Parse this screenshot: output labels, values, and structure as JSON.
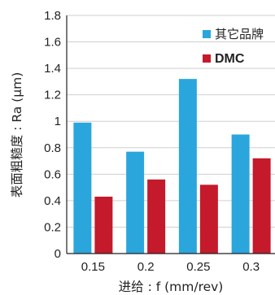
{
  "chart_data": {
    "type": "bar",
    "xlabel": "进给 : f (mm/rev)",
    "ylabel": "表面粗糙度 : Ra (μm)",
    "categories": [
      "0.15",
      "0.2",
      "0.25",
      "0.3"
    ],
    "series": [
      {
        "name": "其它品牌",
        "color": "#2aa6dc",
        "values": [
          0.99,
          0.77,
          1.32,
          0.9
        ]
      },
      {
        "name": "DMC",
        "color": "#c41a2b",
        "values": [
          0.43,
          0.56,
          0.52,
          0.72
        ]
      }
    ],
    "yticks": [
      "0",
      "0.2",
      "0.4",
      "0.6",
      "0.8",
      "1",
      "1.2",
      "1.4",
      "1.6",
      "1.8"
    ],
    "ylim": [
      0,
      1.8
    ],
    "grid": true,
    "legend_position": "top-right"
  }
}
